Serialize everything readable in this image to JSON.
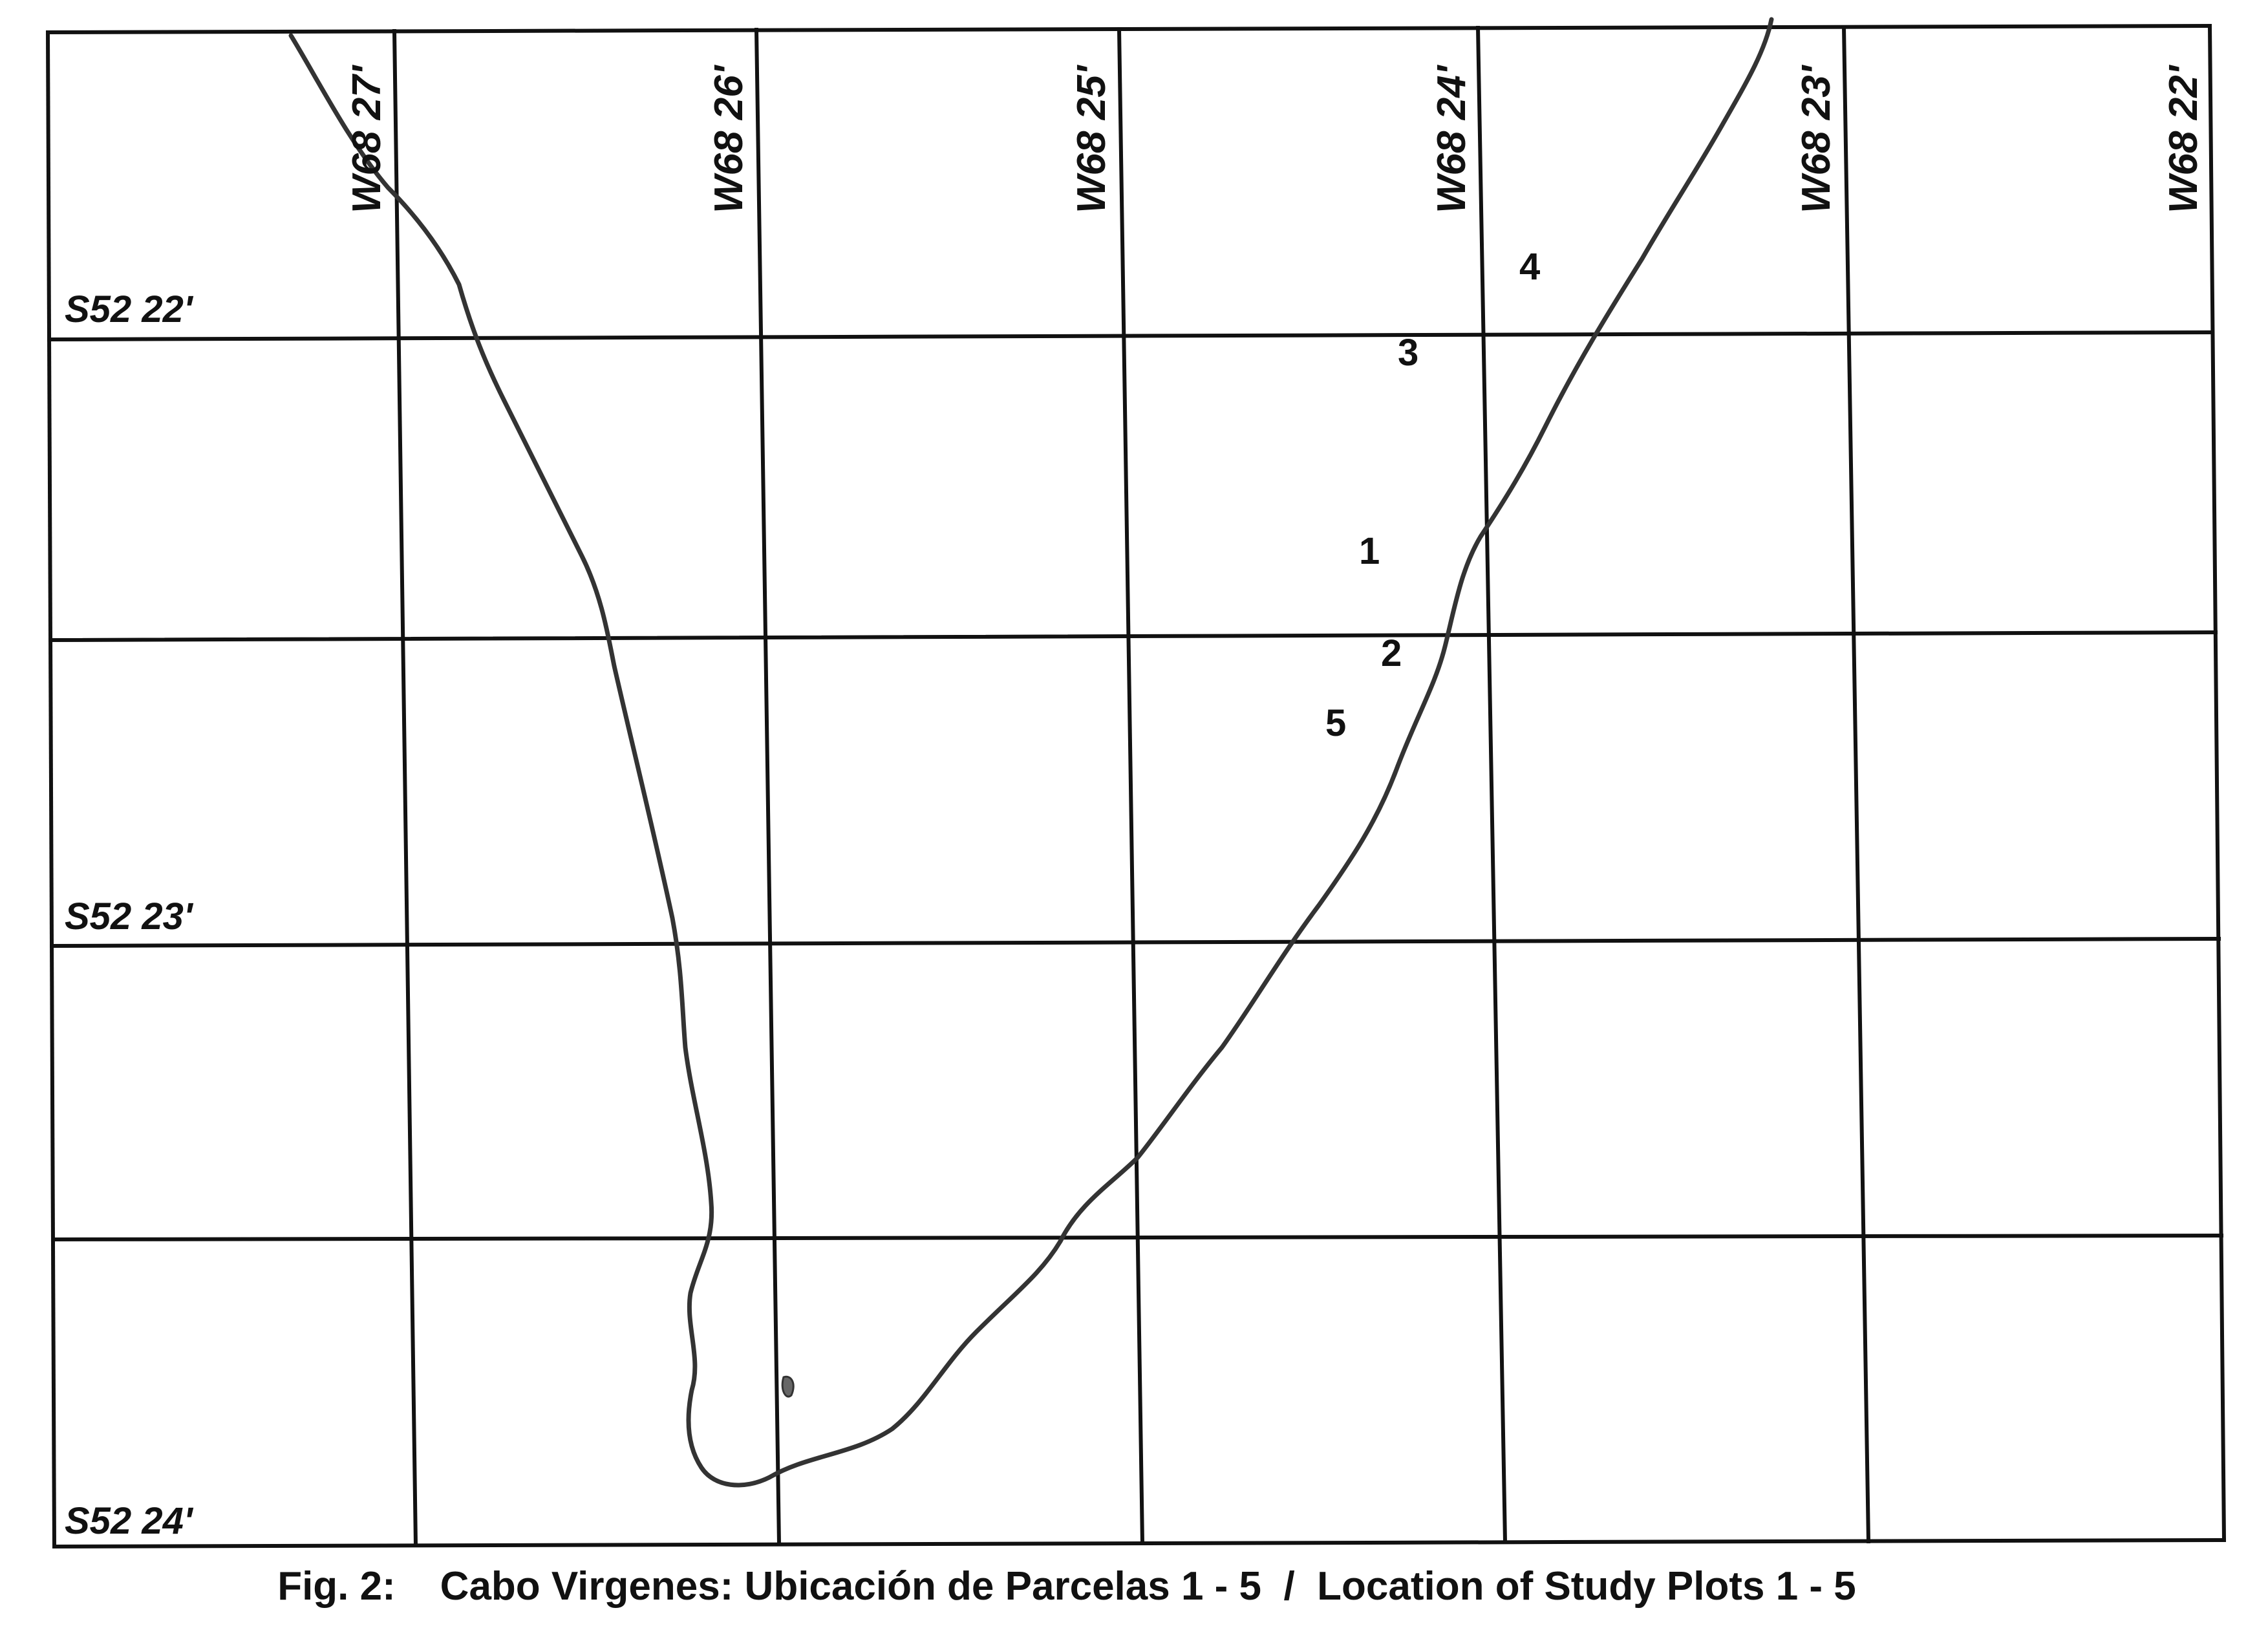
{
  "map": {
    "longitude_labels": [
      "W68 27'",
      "W68 26'",
      "W68 25'",
      "W68 24'",
      "W68 23'",
      "W68 22'"
    ],
    "latitude_labels": [
      "S52 22'",
      "S52 23'",
      "S52 24'"
    ],
    "plot_labels": [
      "1",
      "2",
      "3",
      "4",
      "5"
    ],
    "colors": {
      "grid": "#111111",
      "coastline": "#333333",
      "background": "#ffffff"
    }
  },
  "caption": {
    "figure": "Fig. 2:",
    "text": "Cabo Virgenes: Ubicación de Parcelas 1 - 5  /  Location of Study Plots 1 - 5"
  }
}
